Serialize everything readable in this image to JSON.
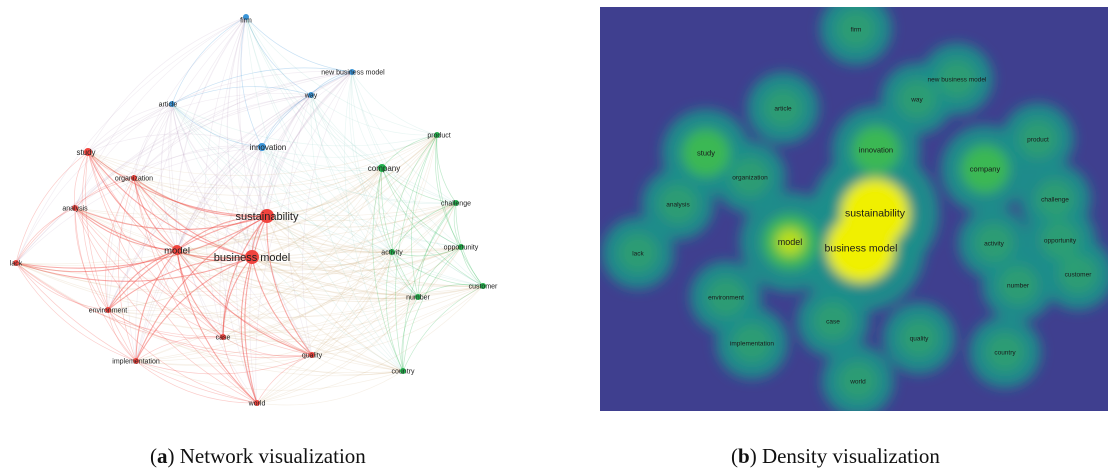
{
  "captions": {
    "a": {
      "open": "(",
      "letter": "a",
      "close": ")",
      "text": "Network visualization"
    },
    "b": {
      "open": "(",
      "letter": "b",
      "close": ")",
      "text": "Density visualization"
    }
  },
  "colors": {
    "red_cluster": "#f0443e",
    "blue_cluster": "#3a95d8",
    "green_cluster": "#22b24c",
    "density_bg": "#3f3f8f",
    "density_teal": "#1f8d8a",
    "density_green": "#3fc04a",
    "density_yellow": "#f0f000"
  },
  "network": {
    "nodes": [
      {
        "id": "firm",
        "label": "firm",
        "cluster": "blue",
        "weight": 2
      },
      {
        "id": "new-business-model",
        "label": "new business model",
        "cluster": "blue",
        "weight": 2
      },
      {
        "id": "way",
        "label": "way",
        "cluster": "blue",
        "weight": 2
      },
      {
        "id": "article",
        "label": "article",
        "cluster": "blue",
        "weight": 2
      },
      {
        "id": "innovation",
        "label": "innovation",
        "cluster": "blue",
        "weight": 3
      },
      {
        "id": "study",
        "label": "study",
        "cluster": "red",
        "weight": 3
      },
      {
        "id": "organization",
        "label": "organization",
        "cluster": "red",
        "weight": 2
      },
      {
        "id": "analysis",
        "label": "analysis",
        "cluster": "red",
        "weight": 2
      },
      {
        "id": "lack",
        "label": "lack",
        "cluster": "red",
        "weight": 2
      },
      {
        "id": "sustainability",
        "label": "sustainability",
        "cluster": "red",
        "weight": 6
      },
      {
        "id": "model",
        "label": "model",
        "cluster": "red",
        "weight": 4
      },
      {
        "id": "business-model",
        "label": "business model",
        "cluster": "red",
        "weight": 6
      },
      {
        "id": "environment",
        "label": "environment",
        "cluster": "red",
        "weight": 2
      },
      {
        "id": "case",
        "label": "case",
        "cluster": "red",
        "weight": 2
      },
      {
        "id": "implementation",
        "label": "implementation",
        "cluster": "red",
        "weight": 2
      },
      {
        "id": "quality",
        "label": "quality",
        "cluster": "red",
        "weight": 2
      },
      {
        "id": "world",
        "label": "world",
        "cluster": "red",
        "weight": 2
      },
      {
        "id": "product",
        "label": "product",
        "cluster": "green",
        "weight": 2
      },
      {
        "id": "company",
        "label": "company",
        "cluster": "green",
        "weight": 3
      },
      {
        "id": "challenge",
        "label": "challenge",
        "cluster": "green",
        "weight": 2
      },
      {
        "id": "activity",
        "label": "activity",
        "cluster": "green",
        "weight": 2
      },
      {
        "id": "opportunity",
        "label": "opportunity",
        "cluster": "green",
        "weight": 2
      },
      {
        "id": "customer",
        "label": "customer",
        "cluster": "green",
        "weight": 2
      },
      {
        "id": "number",
        "label": "number",
        "cluster": "green",
        "weight": 2
      },
      {
        "id": "country",
        "label": "country",
        "cluster": "green",
        "weight": 2
      }
    ]
  }
}
